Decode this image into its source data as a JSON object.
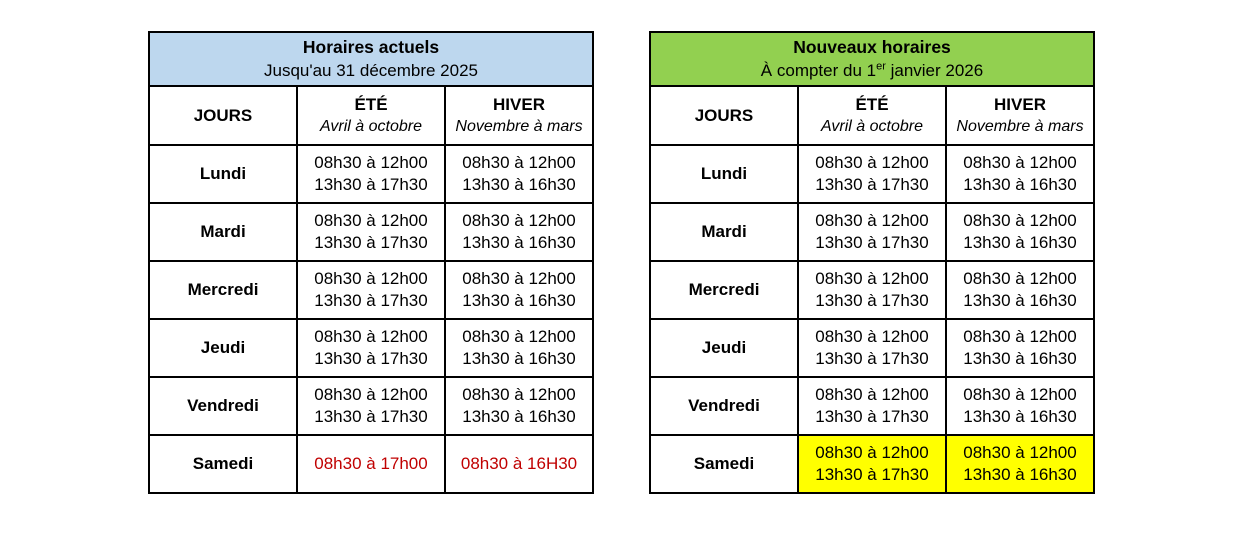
{
  "colors": {
    "header_blue": "#BDD7EE",
    "header_green": "#92D050",
    "highlight_yellow": "#FFFF00",
    "alert_red": "#C00000",
    "border_black": "#000000"
  },
  "tables": [
    {
      "title": "Horaires actuels",
      "subtitle": "Jusqu'au 31 décembre 2025",
      "columns": {
        "days": "JOURS",
        "summer": "ÉTÉ",
        "summer_sub": "Avril à octobre",
        "winter": "HIVER",
        "winter_sub": "Novembre à mars"
      },
      "rows": [
        {
          "day": "Lundi",
          "summer": [
            "08h30 à 12h00",
            "13h30 à 17h30"
          ],
          "winter": [
            "08h30 à 12h00",
            "13h30 à 16h30"
          ]
        },
        {
          "day": "Mardi",
          "summer": [
            "08h30 à 12h00",
            "13h30 à 17h30"
          ],
          "winter": [
            "08h30 à 12h00",
            "13h30 à 16h30"
          ]
        },
        {
          "day": "Mercredi",
          "summer": [
            "08h30 à 12h00",
            "13h30 à 17h30"
          ],
          "winter": [
            "08h30 à 12h00",
            "13h30 à 16h30"
          ]
        },
        {
          "day": "Jeudi",
          "summer": [
            "08h30 à 12h00",
            "13h30 à 17h30"
          ],
          "winter": [
            "08h30 à 12h00",
            "13h30 à 16h30"
          ]
        },
        {
          "day": "Vendredi",
          "summer": [
            "08h30 à 12h00",
            "13h30 à 17h30"
          ],
          "winter": [
            "08h30 à 12h00",
            "13h30 à 16h30"
          ]
        },
        {
          "day": "Samedi",
          "summer": [
            "08h30 à 17h00"
          ],
          "winter": [
            "08h30 à 16H30"
          ]
        }
      ]
    },
    {
      "title": "Nouveaux horaires",
      "subtitle_parts": {
        "before": "À compter du 1",
        "sup": "er",
        "after": " janvier 2026"
      },
      "columns": {
        "days": "JOURS",
        "summer": "ÉTÉ",
        "summer_sub": "Avril à octobre",
        "winter": "HIVER",
        "winter_sub": "Novembre à mars"
      },
      "rows": [
        {
          "day": "Lundi",
          "summer": [
            "08h30 à 12h00",
            "13h30 à 17h30"
          ],
          "winter": [
            "08h30 à 12h00",
            "13h30 à 16h30"
          ]
        },
        {
          "day": "Mardi",
          "summer": [
            "08h30 à 12h00",
            "13h30 à 17h30"
          ],
          "winter": [
            "08h30 à 12h00",
            "13h30 à 16h30"
          ]
        },
        {
          "day": "Mercredi",
          "summer": [
            "08h30 à 12h00",
            "13h30 à 17h30"
          ],
          "winter": [
            "08h30 à 12h00",
            "13h30 à 16h30"
          ]
        },
        {
          "day": "Jeudi",
          "summer": [
            "08h30 à 12h00",
            "13h30 à 17h30"
          ],
          "winter": [
            "08h30 à 12h00",
            "13h30 à 16h30"
          ]
        },
        {
          "day": "Vendredi",
          "summer": [
            "08h30 à 12h00",
            "13h30 à 17h30"
          ],
          "winter": [
            "08h30 à 12h00",
            "13h30 à 16h30"
          ]
        },
        {
          "day": "Samedi",
          "summer": [
            "08h30 à 12h00",
            "13h30 à 17h30"
          ],
          "winter": [
            "08h30 à 12h00",
            "13h30 à 16h30"
          ]
        }
      ]
    }
  ]
}
